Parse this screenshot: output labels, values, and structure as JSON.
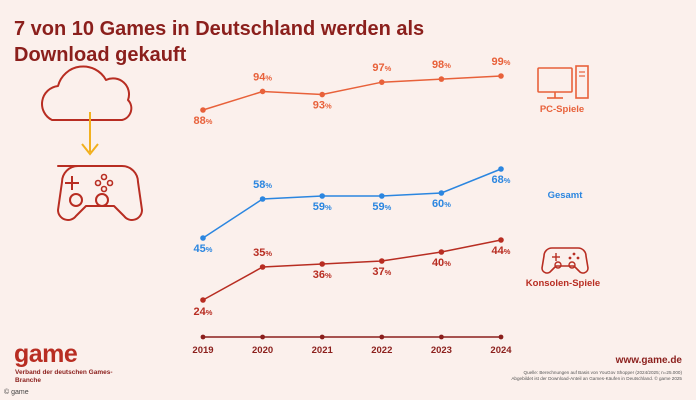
{
  "title": "7 von 10 Games in Deutschland werden als Download gekauft",
  "chart_data": {
    "type": "line",
    "title": "7 von 10 Games in Deutschland werden als Download gekauft",
    "x": [
      "2019",
      "2020",
      "2021",
      "2022",
      "2023",
      "2024"
    ],
    "ylabel": "",
    "xlabel": "",
    "unit": "%",
    "series": [
      {
        "name": "PC-Spiele",
        "values": [
          88,
          94,
          93,
          97,
          98,
          99
        ],
        "color": "#e8613a"
      },
      {
        "name": "Gesamt",
        "values": [
          45,
          58,
          59,
          59,
          60,
          68
        ],
        "color": "#2b86e0"
      },
      {
        "name": "Konsolen-Spiele",
        "values": [
          24,
          35,
          36,
          37,
          40,
          44
        ],
        "color": "#b82d22"
      }
    ],
    "axis_color": "#8b1f1c"
  },
  "logo": {
    "word": "game",
    "subtitle": "Verband der deutschen Games-Branche"
  },
  "credit": "© game",
  "url": "www.game.de",
  "source_lines": [
    "Quelle: Berechnungen auf Basis von YouGov Shopper (2024/2025; n=25.000)",
    "Abgebildet ist der Download-Anteil an Games-Käufen in Deutschland. © game 2025"
  ],
  "icons": {
    "download": "cloud-download-icon",
    "gamepad": "gamepad-icon",
    "pc": "desktop-pc-icon",
    "console": "console-controller-icon"
  },
  "colors": {
    "background": "#fbf0ec",
    "brand": "#b82d22",
    "dark": "#8b1f1c",
    "arrow": "#f2b01e"
  }
}
